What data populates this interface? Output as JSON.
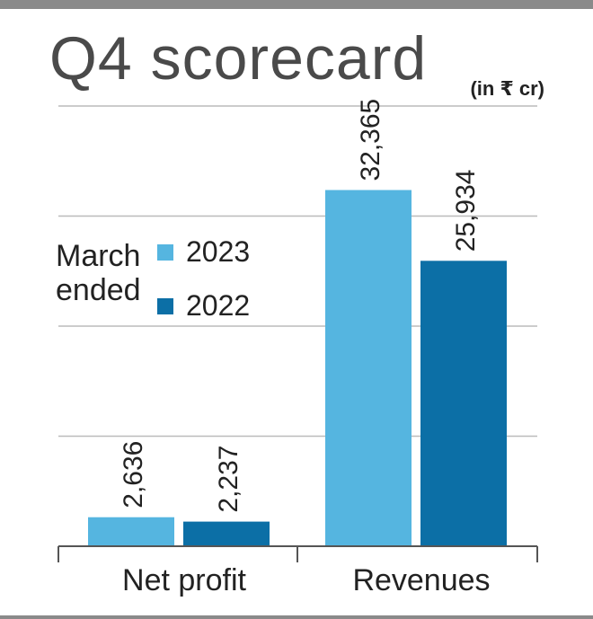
{
  "title": "Q4 scorecard",
  "unit": "(in ₹ cr)",
  "legend": {
    "title_line1": "March",
    "title_line2": "ended"
  },
  "colors": {
    "series_2023": "#55b5e0",
    "series_2022": "#0c6fa6",
    "grid": "#bbbbbb",
    "axis": "#555555",
    "text": "#222222"
  },
  "chart_data": {
    "type": "bar",
    "title": "Q4 scorecard",
    "ylabel": "(in ₹ cr)",
    "categories": [
      "Net profit",
      "Revenues"
    ],
    "series": [
      {
        "name": "2023",
        "values": [
          2636,
          32365
        ],
        "labels": [
          "2,636",
          "32,365"
        ]
      },
      {
        "name": "2022",
        "values": [
          2237,
          25934
        ],
        "labels": [
          "2,237",
          "25,934"
        ]
      }
    ],
    "ylim": [
      0,
      40000
    ],
    "grid": true,
    "legend_position": "left-middle"
  }
}
